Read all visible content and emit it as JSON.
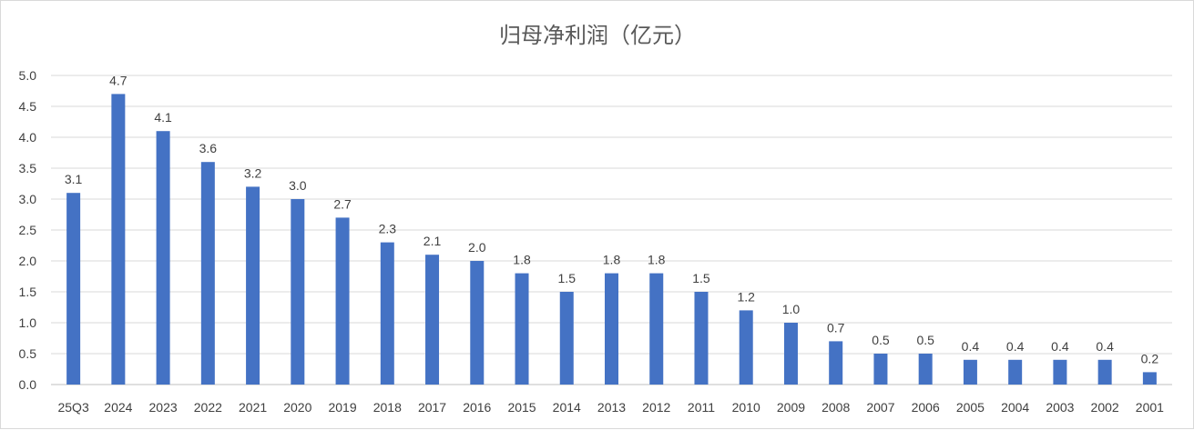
{
  "chart_data": {
    "type": "bar",
    "title": "归母净利润（亿元）",
    "xlabel": "",
    "ylabel": "",
    "categories": [
      "25Q3",
      "2024",
      "2023",
      "2022",
      "2021",
      "2020",
      "2019",
      "2018",
      "2017",
      "2016",
      "2015",
      "2014",
      "2013",
      "2012",
      "2011",
      "2010",
      "2009",
      "2008",
      "2007",
      "2006",
      "2005",
      "2004",
      "2003",
      "2002",
      "2001"
    ],
    "series": [
      {
        "values": [
          3.1,
          4.7,
          4.1,
          3.6,
          3.2,
          3.0,
          2.7,
          2.3,
          2.1,
          2.0,
          1.8,
          1.5,
          1.8,
          1.8,
          1.5,
          1.2,
          1.0,
          0.7,
          0.5,
          0.5,
          0.4,
          0.4,
          0.4,
          0.4,
          0.2
        ],
        "data_labels": [
          "3.1",
          "4.7",
          "4.1",
          "3.6",
          "3.2",
          "3.0",
          "2.7",
          "2.3",
          "2.1",
          "2.0",
          "1.8",
          "1.5",
          "1.8",
          "1.8",
          "1.5",
          "1.2",
          "1.0",
          "0.7",
          "0.5",
          "0.5",
          "0.4",
          "0.4",
          "0.4",
          "0.4",
          "0.2"
        ],
        "color": "#4472c4"
      }
    ],
    "ylim": [
      0,
      5.0
    ],
    "yticks": [
      "0.0",
      "0.5",
      "1.0",
      "1.5",
      "2.0",
      "2.5",
      "3.0",
      "3.5",
      "4.0",
      "4.5",
      "5.0"
    ],
    "grid": true,
    "legend": "none"
  }
}
